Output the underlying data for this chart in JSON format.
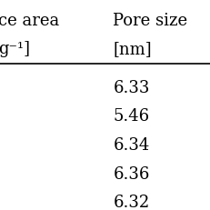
{
  "header_row1_left": "ce area",
  "header_row1_right": "Pore size",
  "header_row2_left": "g⁻¹]",
  "header_row2_right": "[nm]",
  "col2_values": [
    "6.33",
    "5.46",
    "6.34",
    "6.36",
    "6.32"
  ],
  "background_color": "#ffffff",
  "text_color": "#000000",
  "font_size": 13,
  "fig_width": 2.31,
  "fig_height": 2.31,
  "dpi": 100
}
